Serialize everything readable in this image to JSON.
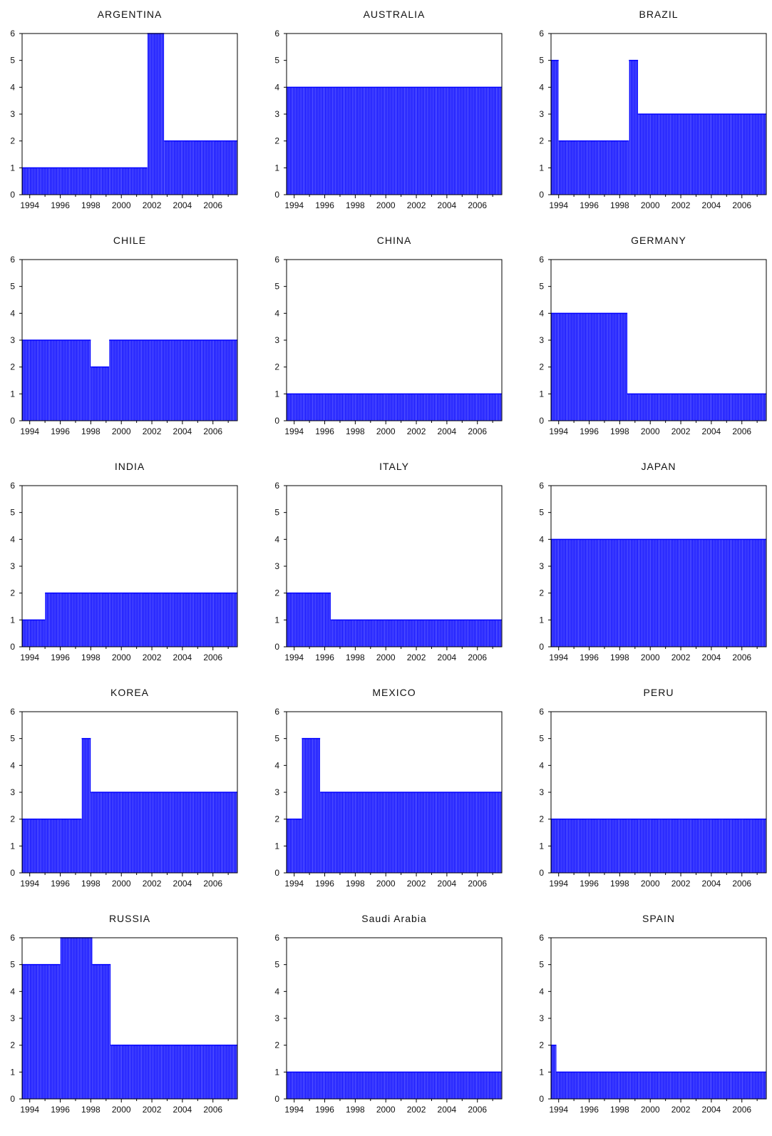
{
  "bar_color": "#0000ff",
  "chart_data": [
    {
      "type": "bar",
      "title": "ARGENTINA",
      "x_ticks": [
        "1994",
        "1996",
        "1998",
        "2000",
        "2002",
        "2004",
        "2006"
      ],
      "ylim": [
        0,
        6
      ],
      "y_ticks": [
        "0",
        "1",
        "2",
        "3",
        "4",
        "5",
        "6"
      ],
      "segments": [
        {
          "from": 1993.5,
          "to": 2001.7,
          "value": 1
        },
        {
          "from": 2001.7,
          "to": 2002.8,
          "value": 6
        },
        {
          "from": 2002.8,
          "to": 2007.6,
          "value": 2
        }
      ]
    },
    {
      "type": "bar",
      "title": "AUSTRALIA",
      "x_ticks": [
        "1994",
        "1996",
        "1998",
        "2000",
        "2002",
        "2004",
        "2006"
      ],
      "ylim": [
        0,
        6
      ],
      "y_ticks": [
        "0",
        "1",
        "2",
        "3",
        "4",
        "5",
        "6"
      ],
      "segments": [
        {
          "from": 1993.5,
          "to": 2007.6,
          "value": 4
        }
      ]
    },
    {
      "type": "bar",
      "title": "BRAZIL",
      "x_ticks": [
        "1994",
        "1996",
        "1998",
        "2000",
        "2002",
        "2004",
        "2006"
      ],
      "ylim": [
        0,
        6
      ],
      "y_ticks": [
        "0",
        "1",
        "2",
        "3",
        "4",
        "5",
        "6"
      ],
      "segments": [
        {
          "from": 1993.5,
          "to": 1994.0,
          "value": 5
        },
        {
          "from": 1994.0,
          "to": 1998.6,
          "value": 2
        },
        {
          "from": 1998.6,
          "to": 1999.2,
          "value": 5
        },
        {
          "from": 1999.2,
          "to": 2007.6,
          "value": 3
        }
      ]
    },
    {
      "type": "bar",
      "title": "CHILE",
      "x_ticks": [
        "1994",
        "1996",
        "1998",
        "2000",
        "2002",
        "2004",
        "2006"
      ],
      "ylim": [
        0,
        6
      ],
      "y_ticks": [
        "0",
        "1",
        "2",
        "3",
        "4",
        "5",
        "6"
      ],
      "segments": [
        {
          "from": 1993.5,
          "to": 1998.0,
          "value": 3
        },
        {
          "from": 1998.0,
          "to": 1999.2,
          "value": 2
        },
        {
          "from": 1999.2,
          "to": 2007.6,
          "value": 3
        }
      ]
    },
    {
      "type": "bar",
      "title": "CHINA",
      "x_ticks": [
        "1994",
        "1996",
        "1998",
        "2000",
        "2002",
        "2004",
        "2006"
      ],
      "ylim": [
        0,
        6
      ],
      "y_ticks": [
        "0",
        "1",
        "2",
        "3",
        "4",
        "5",
        "6"
      ],
      "segments": [
        {
          "from": 1993.5,
          "to": 2007.6,
          "value": 1
        }
      ]
    },
    {
      "type": "bar",
      "title": "GERMANY",
      "x_ticks": [
        "1994",
        "1996",
        "1998",
        "2000",
        "2002",
        "2004",
        "2006"
      ],
      "ylim": [
        0,
        6
      ],
      "y_ticks": [
        "0",
        "1",
        "2",
        "3",
        "4",
        "5",
        "6"
      ],
      "segments": [
        {
          "from": 1993.5,
          "to": 1998.5,
          "value": 4
        },
        {
          "from": 1998.5,
          "to": 2007.6,
          "value": 1
        }
      ]
    },
    {
      "type": "bar",
      "title": "INDIA",
      "x_ticks": [
        "1994",
        "1996",
        "1998",
        "2000",
        "2002",
        "2004",
        "2006"
      ],
      "ylim": [
        0,
        6
      ],
      "y_ticks": [
        "0",
        "1",
        "2",
        "3",
        "4",
        "5",
        "6"
      ],
      "segments": [
        {
          "from": 1993.5,
          "to": 1995.0,
          "value": 1
        },
        {
          "from": 1995.0,
          "to": 2007.6,
          "value": 2
        }
      ]
    },
    {
      "type": "bar",
      "title": "ITALY",
      "x_ticks": [
        "1994",
        "1996",
        "1998",
        "2000",
        "2002",
        "2004",
        "2006"
      ],
      "ylim": [
        0,
        6
      ],
      "y_ticks": [
        "0",
        "1",
        "2",
        "3",
        "4",
        "5",
        "6"
      ],
      "segments": [
        {
          "from": 1993.5,
          "to": 1996.4,
          "value": 2
        },
        {
          "from": 1996.4,
          "to": 2007.6,
          "value": 1
        }
      ]
    },
    {
      "type": "bar",
      "title": "JAPAN",
      "x_ticks": [
        "1994",
        "1996",
        "1998",
        "2000",
        "2002",
        "2004",
        "2006"
      ],
      "ylim": [
        0,
        6
      ],
      "y_ticks": [
        "0",
        "1",
        "2",
        "3",
        "4",
        "5",
        "6"
      ],
      "segments": [
        {
          "from": 1993.5,
          "to": 2007.6,
          "value": 4
        }
      ]
    },
    {
      "type": "bar",
      "title": "KOREA",
      "x_ticks": [
        "1994",
        "1996",
        "1998",
        "2000",
        "2002",
        "2004",
        "2006"
      ],
      "ylim": [
        0,
        6
      ],
      "y_ticks": [
        "0",
        "1",
        "2",
        "3",
        "4",
        "5",
        "6"
      ],
      "segments": [
        {
          "from": 1993.5,
          "to": 1997.4,
          "value": 2
        },
        {
          "from": 1997.4,
          "to": 1998.0,
          "value": 5
        },
        {
          "from": 1998.0,
          "to": 2007.6,
          "value": 3
        }
      ]
    },
    {
      "type": "bar",
      "title": "MEXICO",
      "x_ticks": [
        "1994",
        "1996",
        "1998",
        "2000",
        "2002",
        "2004",
        "2006"
      ],
      "ylim": [
        0,
        6
      ],
      "y_ticks": [
        "0",
        "1",
        "2",
        "3",
        "4",
        "5",
        "6"
      ],
      "segments": [
        {
          "from": 1993.5,
          "to": 1994.5,
          "value": 2
        },
        {
          "from": 1994.5,
          "to": 1995.7,
          "value": 5
        },
        {
          "from": 1995.7,
          "to": 2007.6,
          "value": 3
        }
      ]
    },
    {
      "type": "bar",
      "title": "PERU",
      "x_ticks": [
        "1994",
        "1996",
        "1998",
        "2000",
        "2002",
        "2004",
        "2006"
      ],
      "ylim": [
        0,
        6
      ],
      "y_ticks": [
        "0",
        "1",
        "2",
        "3",
        "4",
        "5",
        "6"
      ],
      "segments": [
        {
          "from": 1993.5,
          "to": 2007.6,
          "value": 2
        }
      ]
    },
    {
      "type": "bar",
      "title": "RUSSIA",
      "x_ticks": [
        "1994",
        "1996",
        "1998",
        "2000",
        "2002",
        "2004",
        "2006"
      ],
      "ylim": [
        0,
        6
      ],
      "y_ticks": [
        "0",
        "1",
        "2",
        "3",
        "4",
        "5",
        "6"
      ],
      "segments": [
        {
          "from": 1993.5,
          "to": 1996.0,
          "value": 5
        },
        {
          "from": 1996.0,
          "to": 1998.1,
          "value": 6
        },
        {
          "from": 1998.1,
          "to": 1999.3,
          "value": 5
        },
        {
          "from": 1999.3,
          "to": 2007.6,
          "value": 2
        }
      ]
    },
    {
      "type": "bar",
      "title": "Saudi Arabia",
      "x_ticks": [
        "1994",
        "1996",
        "1998",
        "2000",
        "2002",
        "2004",
        "2006"
      ],
      "ylim": [
        0,
        6
      ],
      "y_ticks": [
        "0",
        "1",
        "2",
        "3",
        "4",
        "5",
        "6"
      ],
      "segments": [
        {
          "from": 1993.5,
          "to": 2007.6,
          "value": 1
        }
      ]
    },
    {
      "type": "bar",
      "title": "SPAIN",
      "x_ticks": [
        "1994",
        "1996",
        "1998",
        "2000",
        "2002",
        "2004",
        "2006"
      ],
      "ylim": [
        0,
        6
      ],
      "y_ticks": [
        "0",
        "1",
        "2",
        "3",
        "4",
        "5",
        "6"
      ],
      "segments": [
        {
          "from": 1993.5,
          "to": 1993.85,
          "value": 2
        },
        {
          "from": 1993.85,
          "to": 2007.6,
          "value": 1
        }
      ]
    }
  ]
}
